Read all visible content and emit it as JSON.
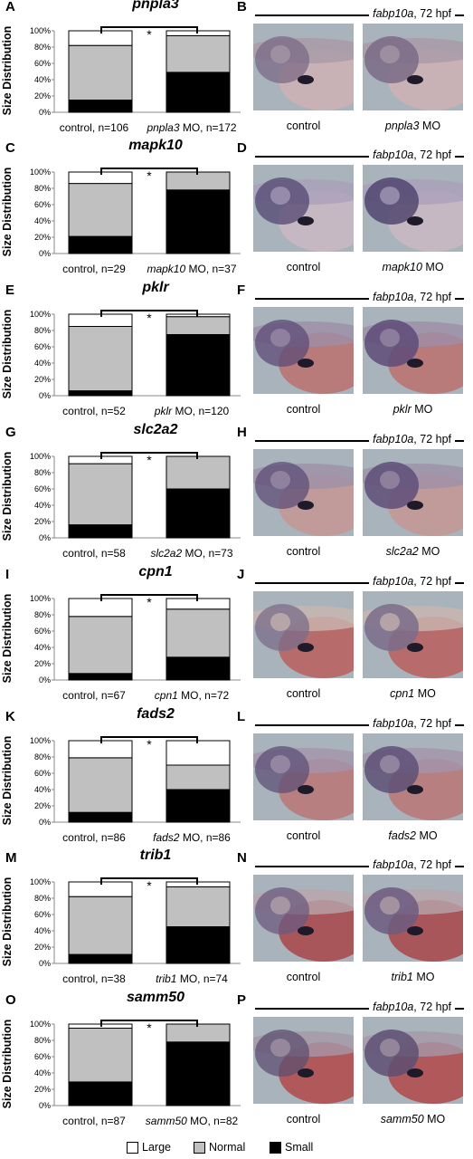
{
  "legend": [
    {
      "label": "Large",
      "color": "#ffffff"
    },
    {
      "label": "Normal",
      "color": "#c0c0c0"
    },
    {
      "label": "Small",
      "color": "#000000"
    }
  ],
  "y_axis_label": "Size Distribution",
  "y_ticks": [
    "0%",
    "20%",
    "40%",
    "60%",
    "80%",
    "100%"
  ],
  "photo_title": "fabp10a, 72 hpf",
  "photo_title_gene": "fabp10a",
  "photo_title_stage": ", 72 hpf",
  "control_label": "control",
  "mo_suffix": " MO",
  "significance": "*",
  "panels": [
    {
      "chart_letter": "A",
      "photo_letter": "B",
      "gene": "pnpla3",
      "ctrl_n": "control, n=106",
      "mo_gene": "pnpla3",
      "mo_n": " MO, n=172"
    },
    {
      "chart_letter": "C",
      "photo_letter": "D",
      "gene": "mapk10",
      "ctrl_n": "control, n=29",
      "mo_gene": "mapk10",
      "mo_n": " MO, n=37"
    },
    {
      "chart_letter": "E",
      "photo_letter": "F",
      "gene": "pklr",
      "ctrl_n": "control, n=52",
      "mo_gene": "pklr",
      "mo_n": " MO, n=120"
    },
    {
      "chart_letter": "G",
      "photo_letter": "H",
      "gene": "slc2a2",
      "ctrl_n": "control, n=58",
      "mo_gene": "slc2a2",
      "mo_n": " MO, n=73"
    },
    {
      "chart_letter": "I",
      "photo_letter": "J",
      "gene": "cpn1",
      "ctrl_n": "control, n=67",
      "mo_gene": "cpn1",
      "mo_n": " MO, n=72"
    },
    {
      "chart_letter": "K",
      "photo_letter": "L",
      "gene": "fads2",
      "ctrl_n": "control, n=86",
      "mo_gene": "fads2",
      "mo_n": " MO, n=86"
    },
    {
      "chart_letter": "M",
      "photo_letter": "N",
      "gene": "trib1",
      "ctrl_n": "control, n=38",
      "mo_gene": "trib1",
      "mo_n": " MO, n=74"
    },
    {
      "chart_letter": "O",
      "photo_letter": "P",
      "gene": "samm50",
      "ctrl_n": "control, n=87",
      "mo_gene": "samm50",
      "mo_n": " MO, n=82"
    }
  ],
  "chart_data": [
    {
      "type": "bar",
      "stacked": true,
      "title": "pnpla3",
      "ylabel": "Size Distribution",
      "ylim": [
        0,
        100
      ],
      "categories": [
        "control, n=106",
        "pnpla3 MO, n=172"
      ],
      "series": [
        {
          "name": "Small",
          "values": [
            15,
            49
          ]
        },
        {
          "name": "Normal",
          "values": [
            67,
            45
          ]
        },
        {
          "name": "Large",
          "values": [
            18,
            6
          ]
        }
      ]
    },
    {
      "type": "bar",
      "stacked": true,
      "title": "mapk10",
      "ylabel": "Size Distribution",
      "ylim": [
        0,
        100
      ],
      "categories": [
        "control, n=29",
        "mapk10 MO, n=37"
      ],
      "series": [
        {
          "name": "Small",
          "values": [
            21,
            78
          ]
        },
        {
          "name": "Normal",
          "values": [
            65,
            22
          ]
        },
        {
          "name": "Large",
          "values": [
            14,
            0
          ]
        }
      ]
    },
    {
      "type": "bar",
      "stacked": true,
      "title": "pklr",
      "ylabel": "Size Distribution",
      "ylim": [
        0,
        100
      ],
      "categories": [
        "control, n=52",
        "pklr MO, n=120"
      ],
      "series": [
        {
          "name": "Small",
          "values": [
            6,
            75
          ]
        },
        {
          "name": "Normal",
          "values": [
            79,
            22
          ]
        },
        {
          "name": "Large",
          "values": [
            15,
            3
          ]
        }
      ]
    },
    {
      "type": "bar",
      "stacked": true,
      "title": "slc2a2",
      "ylabel": "Size Distribution",
      "ylim": [
        0,
        100
      ],
      "categories": [
        "control, n=58",
        "slc2a2 MO, n=73"
      ],
      "series": [
        {
          "name": "Small",
          "values": [
            16,
            60
          ]
        },
        {
          "name": "Normal",
          "values": [
            75,
            40
          ]
        },
        {
          "name": "Large",
          "values": [
            9,
            0
          ]
        }
      ]
    },
    {
      "type": "bar",
      "stacked": true,
      "title": "cpn1",
      "ylabel": "Size Distribution",
      "ylim": [
        0,
        100
      ],
      "categories": [
        "control, n=67",
        "cpn1 MO, n=72"
      ],
      "series": [
        {
          "name": "Small",
          "values": [
            8,
            28
          ]
        },
        {
          "name": "Normal",
          "values": [
            70,
            59
          ]
        },
        {
          "name": "Large",
          "values": [
            22,
            13
          ]
        }
      ]
    },
    {
      "type": "bar",
      "stacked": true,
      "title": "fads2",
      "ylabel": "Size Distribution",
      "ylim": [
        0,
        100
      ],
      "categories": [
        "control, n=86",
        "fads2 MO, n=86"
      ],
      "series": [
        {
          "name": "Small",
          "values": [
            12,
            40
          ]
        },
        {
          "name": "Normal",
          "values": [
            67,
            30
          ]
        },
        {
          "name": "Large",
          "values": [
            21,
            30
          ]
        }
      ]
    },
    {
      "type": "bar",
      "stacked": true,
      "title": "trib1",
      "ylabel": "Size Distribution",
      "ylim": [
        0,
        100
      ],
      "categories": [
        "control, n=38",
        "trib1 MO, n=74"
      ],
      "series": [
        {
          "name": "Small",
          "values": [
            11,
            45
          ]
        },
        {
          "name": "Normal",
          "values": [
            71,
            49
          ]
        },
        {
          "name": "Large",
          "values": [
            18,
            6
          ]
        }
      ]
    },
    {
      "type": "bar",
      "stacked": true,
      "title": "samm50",
      "ylabel": "Size Distribution",
      "ylim": [
        0,
        100
      ],
      "categories": [
        "control, n=87",
        "samm50 MO, n=82"
      ],
      "series": [
        {
          "name": "Small",
          "values": [
            29,
            78
          ]
        },
        {
          "name": "Normal",
          "values": [
            66,
            22
          ]
        },
        {
          "name": "Large",
          "values": [
            5,
            0
          ]
        }
      ]
    }
  ]
}
